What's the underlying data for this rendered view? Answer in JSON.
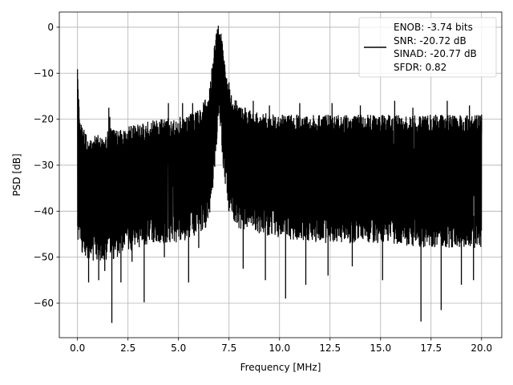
{
  "chart_data": {
    "type": "line",
    "xlabel": "Frequency [MHz]",
    "ylabel": "PSD [dB]",
    "xlim": [
      -0.9,
      21.0
    ],
    "ylim": [
      -67.5,
      3.3
    ],
    "xticks": [
      0.0,
      2.5,
      5.0,
      7.5,
      10.0,
      12.5,
      15.0,
      17.5,
      20.0
    ],
    "xtick_labels": [
      "0.0",
      "2.5",
      "5.0",
      "7.5",
      "10.0",
      "12.5",
      "15.0",
      "17.5",
      "20.0"
    ],
    "yticks": [
      0,
      -10,
      -20,
      -30,
      -40,
      -50,
      -60
    ],
    "ytick_labels": [
      "0",
      "−10",
      "−20",
      "−30",
      "−40",
      "−50",
      "−60"
    ],
    "grid": true,
    "legend_position": "upper right",
    "series_color": "#000000",
    "legend_entries": [
      "ENOB: -3.74 bits",
      "SNR: -20.72 dB",
      "SINAD: -20.77 dB",
      "SFDR: 0.82"
    ],
    "series": [
      {
        "x_range": [
          0,
          20
        ],
        "envelope": [
          {
            "x": 0.0,
            "top": -8.5,
            "bottom": -44
          },
          {
            "x": 0.1,
            "top": -22,
            "bottom": -45
          },
          {
            "x": 0.5,
            "top": -26,
            "bottom": -48
          },
          {
            "x": 1.0,
            "top": -25,
            "bottom": -48
          },
          {
            "x": 1.5,
            "top": -24.5,
            "bottom": -48
          },
          {
            "x": 2.0,
            "top": -24,
            "bottom": -47
          },
          {
            "x": 2.5,
            "top": -23.5,
            "bottom": -46
          },
          {
            "x": 3.0,
            "top": -23,
            "bottom": -45
          },
          {
            "x": 4.0,
            "top": -22,
            "bottom": -44
          },
          {
            "x": 5.0,
            "top": -21.5,
            "bottom": -44
          },
          {
            "x": 5.5,
            "top": -21,
            "bottom": -43
          },
          {
            "x": 6.0,
            "top": -20,
            "bottom": -42
          },
          {
            "x": 6.5,
            "top": -16,
            "bottom": -40
          },
          {
            "x": 6.8,
            "top": -5,
            "bottom": -28
          },
          {
            "x": 7.0,
            "top": -0.3,
            "bottom": -16
          },
          {
            "x": 7.2,
            "top": -6,
            "bottom": -27
          },
          {
            "x": 7.5,
            "top": -15,
            "bottom": -38
          },
          {
            "x": 8.0,
            "top": -19,
            "bottom": -41
          },
          {
            "x": 9.0,
            "top": -20.5,
            "bottom": -42
          },
          {
            "x": 10.0,
            "top": -21,
            "bottom": -43
          },
          {
            "x": 12.5,
            "top": -21,
            "bottom": -44
          },
          {
            "x": 15.0,
            "top": -21,
            "bottom": -44
          },
          {
            "x": 17.5,
            "top": -21,
            "bottom": -45
          },
          {
            "x": 20.0,
            "top": -21,
            "bottom": -45
          }
        ],
        "spikes_down": [
          {
            "x": 0.55,
            "y": -55.5
          },
          {
            "x": 1.05,
            "y": -55
          },
          {
            "x": 1.35,
            "y": -53
          },
          {
            "x": 1.7,
            "y": -64.3
          },
          {
            "x": 2.15,
            "y": -55.5
          },
          {
            "x": 2.7,
            "y": -51
          },
          {
            "x": 3.3,
            "y": -59.8
          },
          {
            "x": 4.3,
            "y": -50
          },
          {
            "x": 5.5,
            "y": -55.5
          },
          {
            "x": 6.0,
            "y": -48
          },
          {
            "x": 8.2,
            "y": -52.5
          },
          {
            "x": 9.3,
            "y": -55
          },
          {
            "x": 10.3,
            "y": -59
          },
          {
            "x": 11.3,
            "y": -56
          },
          {
            "x": 12.4,
            "y": -54
          },
          {
            "x": 13.6,
            "y": -52
          },
          {
            "x": 15.1,
            "y": -55
          },
          {
            "x": 17.0,
            "y": -64
          },
          {
            "x": 18.0,
            "y": -61.5
          },
          {
            "x": 19.0,
            "y": -56
          },
          {
            "x": 19.6,
            "y": -55
          }
        ],
        "spikes_up": [
          {
            "x": 1.55,
            "y": -17.5
          },
          {
            "x": 1.6,
            "y": -19.5
          },
          {
            "x": 1.65,
            "y": -22
          },
          {
            "x": 4.5,
            "y": -16.5
          },
          {
            "x": 5.2,
            "y": -16.5
          },
          {
            "x": 5.7,
            "y": -16.5
          },
          {
            "x": 7.5,
            "y": -12
          },
          {
            "x": 8.7,
            "y": -16
          },
          {
            "x": 9.5,
            "y": -17
          },
          {
            "x": 11.0,
            "y": -16.5
          },
          {
            "x": 12.6,
            "y": -16.5
          },
          {
            "x": 14.0,
            "y": -17
          },
          {
            "x": 15.7,
            "y": -16
          },
          {
            "x": 16.6,
            "y": -17.5
          },
          {
            "x": 18.3,
            "y": -16
          },
          {
            "x": 19.4,
            "y": -17
          },
          {
            "x": 20.0,
            "y": -19
          }
        ]
      }
    ]
  }
}
